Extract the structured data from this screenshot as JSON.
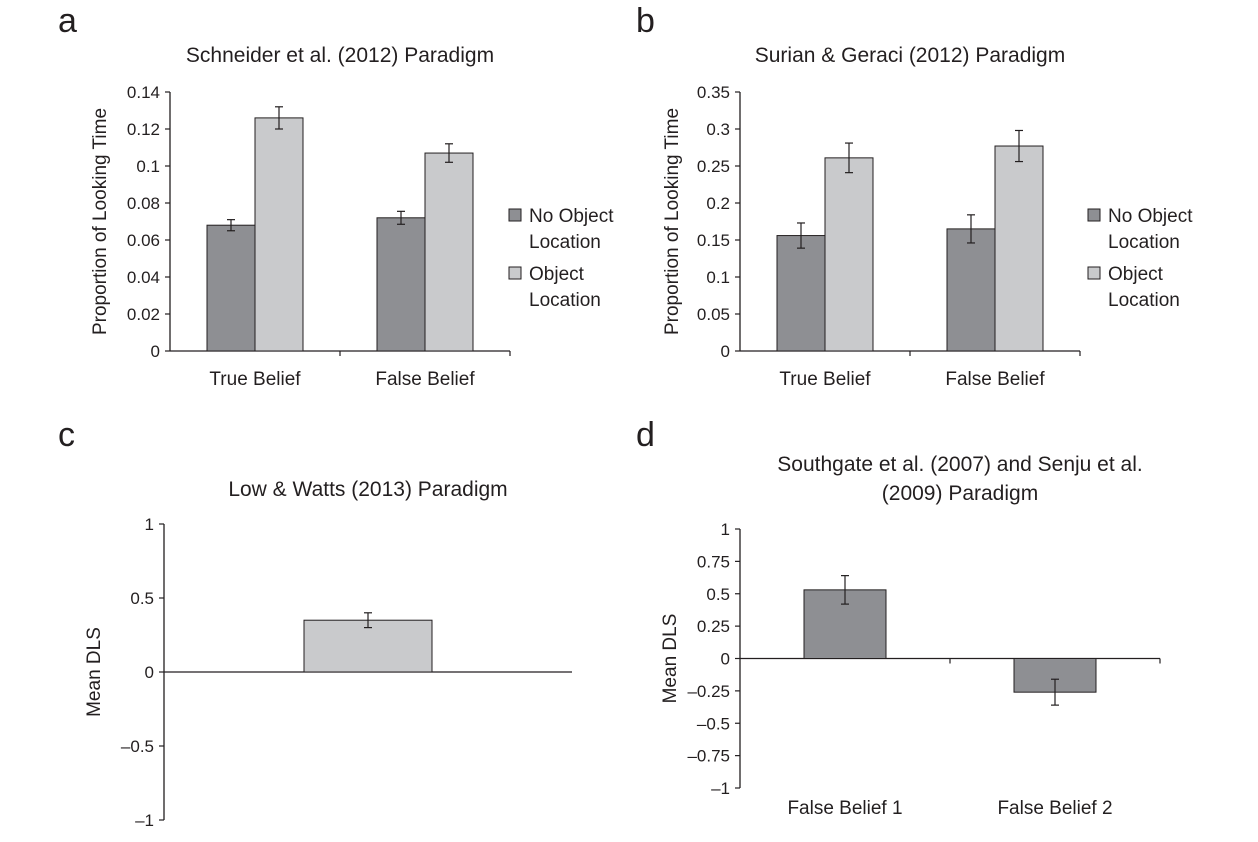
{
  "colors": {
    "dark_bar": "#8e8f93",
    "light_bar": "#c9cacc",
    "axis": "#231f20",
    "bar_stroke": "#231f20"
  },
  "legend_labels": {
    "no_object": [
      "No Object",
      "Location"
    ],
    "object": [
      "Object",
      "Location"
    ]
  },
  "chart_data": [
    {
      "panel": "a",
      "type": "bar",
      "title": "Schneider et al. (2012) Paradigm",
      "ylabel": "Proportion of Looking Time",
      "xlabel": "",
      "categories": [
        "True Belief",
        "False Belief"
      ],
      "ylim": [
        0,
        0.14
      ],
      "yticks": [
        "0",
        "0.02",
        "0.04",
        "0.06",
        "0.08",
        "0.1",
        "0.12",
        "0.14"
      ],
      "legend": "right",
      "grid": false,
      "series": [
        {
          "name": "No Object Location",
          "color": "dark",
          "values": [
            0.068,
            0.072
          ],
          "error": [
            0.003,
            0.0035
          ]
        },
        {
          "name": "Object Location",
          "color": "light",
          "values": [
            0.126,
            0.107
          ],
          "error": [
            0.006,
            0.005
          ]
        }
      ]
    },
    {
      "panel": "b",
      "type": "bar",
      "title": "Surian & Geraci (2012) Paradigm",
      "ylabel": "Proportion of Looking Time",
      "xlabel": "",
      "categories": [
        "True Belief",
        "False Belief"
      ],
      "ylim": [
        0,
        0.35
      ],
      "yticks": [
        "0",
        "0.05",
        "0.1",
        "0.15",
        "0.2",
        "0.25",
        "0.3",
        "0.35"
      ],
      "legend": "right",
      "grid": false,
      "series": [
        {
          "name": "No Object Location",
          "color": "dark",
          "values": [
            0.156,
            0.165
          ],
          "error": [
            0.017,
            0.019
          ]
        },
        {
          "name": "Object Location",
          "color": "light",
          "values": [
            0.261,
            0.277
          ],
          "error": [
            0.02,
            0.021
          ]
        }
      ]
    },
    {
      "panel": "c",
      "type": "bar",
      "title": "Low & Watts (2013) Paradigm",
      "ylabel": "Mean DLS",
      "xlabel": "",
      "categories": [
        ""
      ],
      "ylim": [
        -1,
        1
      ],
      "yticks": [
        "–1",
        "–0.5",
        "0",
        "0.5",
        "1"
      ],
      "legend": "none",
      "grid": false,
      "series": [
        {
          "color": "light",
          "values": [
            0.35
          ],
          "error": [
            0.05
          ]
        }
      ]
    },
    {
      "panel": "d",
      "type": "bar",
      "title": "Southgate et al. (2007) and Senju et al. (2009) Paradigm",
      "title_lines": [
        "Southgate et al. (2007) and Senju et al.",
        "(2009) Paradigm"
      ],
      "ylabel": "Mean DLS",
      "xlabel": "",
      "categories": [
        "False Belief 1",
        "False Belief 2"
      ],
      "ylim": [
        -1,
        1
      ],
      "yticks": [
        "–1",
        "–0.75",
        "–0.5",
        "–0.25",
        "0",
        "0.25",
        "0.5",
        "0.75",
        "1"
      ],
      "legend": "none",
      "grid": false,
      "series": [
        {
          "color": "dark",
          "values": [
            0.53,
            -0.26
          ],
          "error": [
            0.11,
            0.1
          ]
        }
      ]
    }
  ]
}
